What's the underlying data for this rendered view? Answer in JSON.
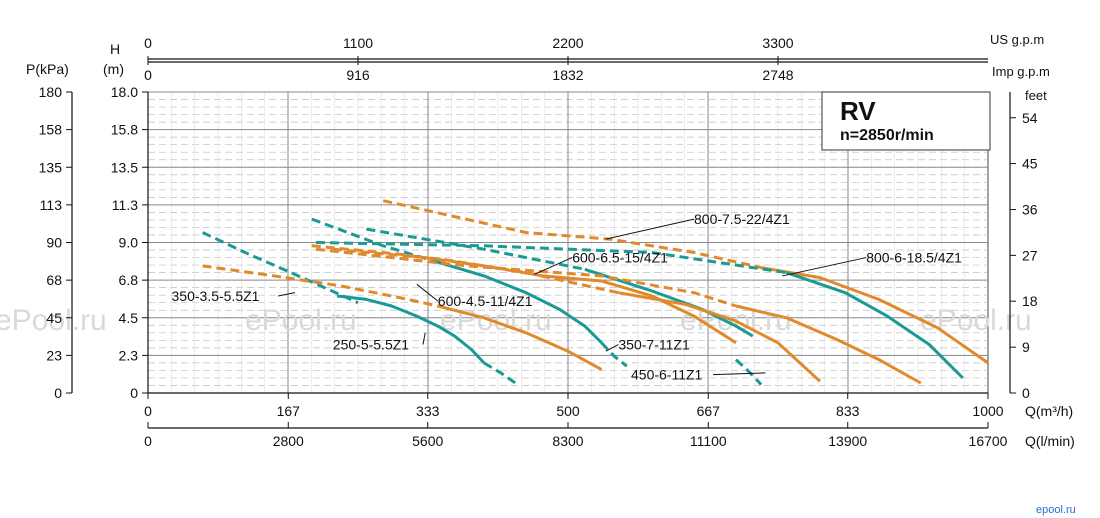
{
  "chart_data": {
    "type": "line",
    "title": "RV",
    "subtitle": "n=2850r/min",
    "watermark": "ePool.ru",
    "corner_mark": "epool.ru",
    "xlabel": "Q(m³/h)",
    "xlabel_alt": "Q(l/min)",
    "xlabel_us": "US g.p.m",
    "xlabel_imp": "Imp g.p.m",
    "ylabel_kpa": "P(kPa)",
    "ylabel_h": "H",
    "ylabel_h_unit": "(m)",
    "ylabel_feet": "feet",
    "xlim": [
      0,
      1000
    ],
    "ylim": [
      0,
      18
    ],
    "grid": true,
    "x_ticks": [
      0,
      167,
      333,
      500,
      667,
      833,
      1000
    ],
    "x_tick_labels": [
      "0",
      "167",
      "333",
      "500",
      "667",
      "833",
      "1000"
    ],
    "lmin_ticks": [
      0,
      167,
      333,
      500,
      667,
      833,
      1000
    ],
    "lmin_tick_labels": [
      "0",
      "2800",
      "5600",
      "8300",
      "11100",
      "13900",
      "16700"
    ],
    "us_ticks": [
      0,
      250,
      500,
      750
    ],
    "us_tick_labels": [
      "0",
      "1100",
      "2200",
      "3300"
    ],
    "imp_ticks": [
      0,
      250,
      500,
      750
    ],
    "imp_tick_labels": [
      "0",
      "916",
      "1832",
      "2748"
    ],
    "y_ticks": [
      0,
      2.25,
      4.5,
      6.75,
      9.0,
      11.25,
      13.5,
      15.75,
      18.0
    ],
    "y_tick_labels": [
      "0",
      "2.3",
      "4.5",
      "6.8",
      "9.0",
      "11.3",
      "13.5",
      "15.8",
      "18.0"
    ],
    "kpa_tick_labels": [
      "0",
      "23",
      "45",
      "68",
      "90",
      "113",
      "135",
      "158",
      "180"
    ],
    "feet_ticks": [
      0,
      2.74,
      5.49,
      8.23,
      10.97,
      13.72,
      16.46
    ],
    "feet_tick_labels": [
      "0",
      "9",
      "18",
      "27",
      "36",
      "45",
      "54"
    ],
    "series": [
      {
        "name": "350-3.5-5.5Z1",
        "color": "#1a9a96",
        "x": [
          65,
          120,
          170,
          210,
          250
        ],
        "y": [
          9.6,
          8.3,
          7.2,
          6.3,
          5.4
        ],
        "dashed": true
      },
      {
        "name": "250-5-5.5Z1",
        "color": "#1a9a96",
        "x": [
          225,
          260,
          290,
          320,
          345,
          365,
          385,
          400
        ],
        "y": [
          5.8,
          5.6,
          5.2,
          4.6,
          4.0,
          3.4,
          2.6,
          1.8
        ],
        "dashed": false
      },
      {
        "name": "250-5-5.5Z1 (ext)",
        "color": "#1a9a96",
        "x": [
          400,
          420,
          440
        ],
        "y": [
          1.8,
          1.2,
          0.5
        ],
        "dashed": true
      },
      {
        "name": "600-4.5-11/4Z1",
        "color": "#e08a2c",
        "x": [
          65,
          150,
          230,
          300,
          345
        ],
        "y": [
          7.6,
          7.0,
          6.4,
          5.7,
          5.2
        ],
        "dashed": true
      },
      {
        "name": "600-4.5-11/4Z1 (solid)",
        "color": "#e08a2c",
        "x": [
          345,
          400,
          450,
          500,
          540
        ],
        "y": [
          5.2,
          4.5,
          3.6,
          2.5,
          1.4
        ],
        "dashed": false
      },
      {
        "name": "600-6.5-15/4Z1",
        "color": "#1a9a96",
        "x": [
          195,
          280,
          340
        ],
        "y": [
          10.4,
          8.8,
          7.9
        ],
        "dashed": true
      },
      {
        "name": "600-6.5-15/4Z1 (solid)",
        "color": "#1a9a96",
        "x": [
          340,
          400,
          450,
          490,
          520,
          540
        ],
        "y": [
          7.9,
          7.0,
          6.0,
          5.0,
          4.0,
          3.0
        ],
        "dashed": false
      },
      {
        "name": "350-7-11Z1",
        "color": "#e08a2c",
        "x": [
          195,
          300,
          400,
          470
        ],
        "y": [
          8.8,
          8.3,
          7.6,
          7.0
        ],
        "dashed": true
      },
      {
        "name": "350-7-11Z1 (solid)",
        "color": "#e08a2c",
        "x": [
          470,
          540,
          600,
          650,
          700
        ],
        "y": [
          7.0,
          6.7,
          5.8,
          4.6,
          3.0
        ],
        "dashed": false
      },
      {
        "name": "350-7-11Z1 (ext)",
        "color": "#1a9a96",
        "x": [
          540,
          555,
          570
        ],
        "y": [
          3.0,
          2.2,
          1.6
        ],
        "dashed": true
      },
      {
        "name": "450-6-11Z1",
        "color": "#1a9a96",
        "x": [
          260,
          400,
          520
        ],
        "y": [
          9.8,
          8.6,
          7.4
        ],
        "dashed": true
      },
      {
        "name": "450-6-11Z1 (solid)",
        "color": "#1a9a96",
        "x": [
          520,
          600,
          660,
          700,
          720
        ],
        "y": [
          7.4,
          6.1,
          5.0,
          4.0,
          3.4
        ],
        "dashed": false
      },
      {
        "name": "450-6-11Z1 (ext)",
        "color": "#1a9a96",
        "x": [
          700,
          715,
          730
        ],
        "y": [
          2.0,
          1.3,
          0.5
        ],
        "dashed": true
      },
      {
        "name": "800-7.5-22/4Z1",
        "color": "#e08a2c",
        "x": [
          280,
          450,
          550,
          650,
          730
        ],
        "y": [
          11.5,
          9.6,
          9.2,
          8.4,
          7.5
        ],
        "dashed": true
      },
      {
        "name": "800-7.5-22/4Z1 (solid)",
        "color": "#e08a2c",
        "x": [
          730,
          800,
          870,
          940,
          1000
        ],
        "y": [
          7.5,
          6.9,
          5.6,
          3.9,
          1.8
        ],
        "dashed": false
      },
      {
        "name": "800-6-18.5/4Z1",
        "color": "#1a9a96",
        "x": [
          200,
          400,
          600,
          760
        ],
        "y": [
          9.0,
          8.8,
          8.4,
          7.2
        ],
        "dashed": true
      },
      {
        "name": "800-6-18.5/4Z1 (solid)",
        "color": "#1a9a96",
        "x": [
          760,
          830,
          880,
          930,
          970
        ],
        "y": [
          7.2,
          6.0,
          4.6,
          2.9,
          0.9
        ],
        "dashed": false
      },
      {
        "name": "800-6-18.5/4Z1 (orange)",
        "color": "#e08a2c",
        "x": [
          200,
          380,
          540,
          650,
          700
        ],
        "y": [
          8.6,
          7.6,
          7.0,
          6.0,
          5.2
        ],
        "dashed": true
      },
      {
        "name": "800-6-18.5/4Z1 (orange solid)",
        "color": "#e08a2c",
        "x": [
          700,
          760,
          820,
          870,
          920
        ],
        "y": [
          5.2,
          4.5,
          3.2,
          2.0,
          0.6
        ],
        "dashed": false
      },
      {
        "name": "600-6.5-15/4Z1 (orange)",
        "color": "#e08a2c",
        "x": [
          220,
          350,
          450,
          560
        ],
        "y": [
          8.6,
          8.0,
          7.2,
          6.0
        ],
        "dashed": true
      },
      {
        "name": "600-6.5-15/4Z1 (orange solid)",
        "color": "#e08a2c",
        "x": [
          560,
          640,
          700,
          750,
          800
        ],
        "y": [
          6.0,
          5.3,
          4.3,
          3.0,
          0.7
        ],
        "dashed": false
      }
    ],
    "annotations": [
      {
        "text": "800-7.5-22/4Z1",
        "x": 650,
        "y": 10.1,
        "tip_x": 545,
        "tip_y": 9.2
      },
      {
        "text": "800-6-18.5/4Z1",
        "x": 855,
        "y": 7.8,
        "tip_x": 755,
        "tip_y": 7.0
      },
      {
        "text": "600-6.5-15/4Z1",
        "x": 505,
        "y": 7.8,
        "tip_x": 460,
        "tip_y": 7.1
      },
      {
        "text": "350-3.5-5.5Z1",
        "x": 28,
        "y": 5.5,
        "tip_x": 175,
        "tip_y": 6.0
      },
      {
        "text": "600-4.5-11/4Z1",
        "x": 345,
        "y": 5.2,
        "tip_x": 320,
        "tip_y": 6.5
      },
      {
        "text": "250-5-5.5Z1",
        "x": 220,
        "y": 2.6,
        "tip_x": 330,
        "tip_y": 3.6
      },
      {
        "text": "350-7-11Z1",
        "x": 560,
        "y": 2.6,
        "tip_x": 545,
        "tip_y": 2.5
      },
      {
        "text": "450-6-11Z1",
        "x": 575,
        "y": 0.8,
        "tip_x": 735,
        "tip_y": 1.2
      }
    ]
  }
}
